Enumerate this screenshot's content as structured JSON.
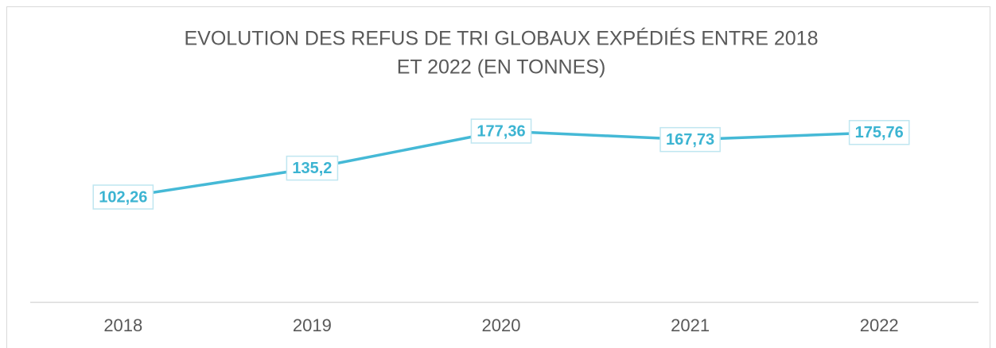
{
  "chart_data": {
    "type": "line",
    "title": [
      "EVOLUTION DES REFUS DE TRI GLOBAUX EXPÉDIÉS ENTRE 2018",
      "ET 2022 (EN TONNES)"
    ],
    "categories": [
      "2018",
      "2019",
      "2020",
      "2021",
      "2022"
    ],
    "series": [
      {
        "name": "Refus de tri",
        "color": "#45b9d6",
        "values": [
          102.26,
          135.2,
          177.36,
          167.73,
          175.76
        ],
        "value_labels": [
          "102,26",
          "135,2",
          "177,36",
          "167,73",
          "175,76"
        ]
      }
    ],
    "ylim": [
      0,
      200
    ]
  }
}
